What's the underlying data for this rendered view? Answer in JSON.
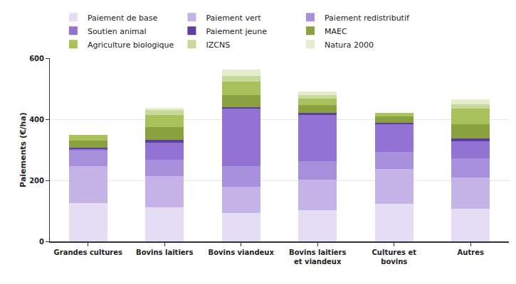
{
  "chart_data": {
    "type": "bar",
    "stacked": true,
    "grid": true,
    "legend": "top",
    "ylabel": "Paiements (€/ha)",
    "categories": [
      "Grandes cultures",
      "Bovins laitiers",
      "Bovins viandeux",
      "Bovins laitiers et viandeux",
      "Cultures et bovins",
      "Autres"
    ],
    "ylim": [
      0,
      600
    ],
    "yticks": [
      0,
      200,
      400,
      600
    ],
    "series": [
      {
        "name": "Paiement de base",
        "color": "#e4ddf3",
        "values": [
          126,
          111,
          93,
          102,
          124,
          107
        ]
      },
      {
        "name": "Paiement vert",
        "color": "#c5b3e7",
        "values": [
          120,
          104,
          87,
          100,
          113,
          102
        ]
      },
      {
        "name": "Paiement redistributif",
        "color": "#a890dc",
        "values": [
          52,
          52,
          66,
          61,
          56,
          63
        ]
      },
      {
        "name": "Soutien animal",
        "color": "#9272d3",
        "values": [
          4,
          57,
          189,
          150,
          92,
          56
        ]
      },
      {
        "name": "Paiement jeune",
        "color": "#5e3e9e",
        "values": [
          5,
          9,
          4,
          7,
          4,
          9
        ]
      },
      {
        "name": "MAEC",
        "color": "#8aa13f",
        "values": [
          23,
          41,
          41,
          26,
          20,
          46
        ]
      },
      {
        "name": "Agriculture biologique",
        "color": "#a9c25b",
        "values": [
          18,
          39,
          44,
          21,
          11,
          52
        ]
      },
      {
        "name": "IZCNS",
        "color": "#c7da9c",
        "values": [
          0,
          17,
          19,
          11,
          0,
          15
        ]
      },
      {
        "name": "Natura 2000",
        "color": "#e5edcc",
        "values": [
          0,
          7,
          20,
          13,
          0,
          15
        ]
      }
    ]
  }
}
